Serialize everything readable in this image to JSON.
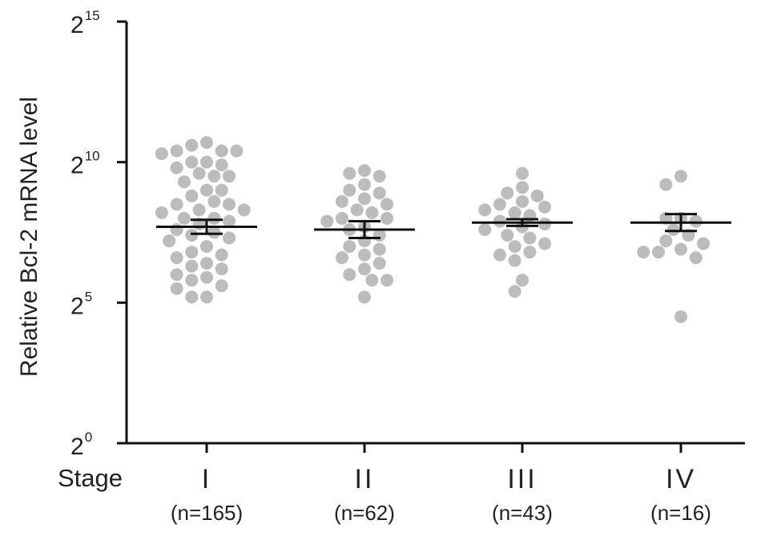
{
  "chart_data": {
    "type": "scatter",
    "ylabel": "Relative Bcl-2 mRNA level",
    "y_scale": "log2",
    "ylim": [
      1,
      32768
    ],
    "y_ticks": [
      {
        "base": "2",
        "exp": "0"
      },
      {
        "base": "2",
        "exp": "5"
      },
      {
        "base": "2",
        "exp": "10"
      },
      {
        "base": "2",
        "exp": "15"
      }
    ],
    "x_row_label": "Stage",
    "categories": [
      "I",
      "II",
      "III",
      "IV"
    ],
    "sample_sizes": [
      "(n=165)",
      "(n=62)",
      "(n=43)",
      "(n=16)"
    ],
    "point_color": "#bcbcbc",
    "summary_color": "#111111",
    "series": [
      {
        "category": "I",
        "mean_log2": 7.7,
        "sem_log2": 0.25,
        "points_log2": [
          10.7,
          10.6,
          10.4,
          10.4,
          10.4,
          10.3,
          10.0,
          10.0,
          9.9,
          9.8,
          9.6,
          9.5,
          9.5,
          9.3,
          9.0,
          9.0,
          8.8,
          8.6,
          8.5,
          8.5,
          8.3,
          8.3,
          8.2,
          8.0,
          8.0,
          7.9,
          7.8,
          7.6,
          7.5,
          7.4,
          7.3,
          7.2,
          7.0,
          6.8,
          6.7,
          6.6,
          6.4,
          6.3,
          6.2,
          6.0,
          5.9,
          5.8,
          5.6,
          5.5,
          5.2,
          5.2
        ]
      },
      {
        "category": "II",
        "mean_log2": 7.6,
        "sem_log2": 0.3,
        "points_log2": [
          9.7,
          9.6,
          9.5,
          9.2,
          9.0,
          8.9,
          8.7,
          8.6,
          8.5,
          8.3,
          8.2,
          8.0,
          8.0,
          7.9,
          7.7,
          7.6,
          7.4,
          7.2,
          7.0,
          6.9,
          6.7,
          6.6,
          6.4,
          6.2,
          6.0,
          5.8,
          5.8,
          5.2
        ]
      },
      {
        "category": "III",
        "mean_log2": 7.85,
        "sem_log2": 0.12,
        "points_log2": [
          9.6,
          9.1,
          8.9,
          8.8,
          8.6,
          8.5,
          8.4,
          8.3,
          8.2,
          8.1,
          7.9,
          7.8,
          7.7,
          7.6,
          7.4,
          7.3,
          7.1,
          7.0,
          6.8,
          6.7,
          6.5,
          5.8,
          5.4
        ]
      },
      {
        "category": "IV",
        "mean_log2": 7.85,
        "sem_log2": 0.3,
        "points_log2": [
          9.5,
          9.2,
          8.0,
          8.0,
          7.9,
          7.6,
          7.4,
          7.2,
          7.1,
          6.9,
          6.8,
          6.8,
          6.6,
          4.5
        ]
      }
    ]
  }
}
